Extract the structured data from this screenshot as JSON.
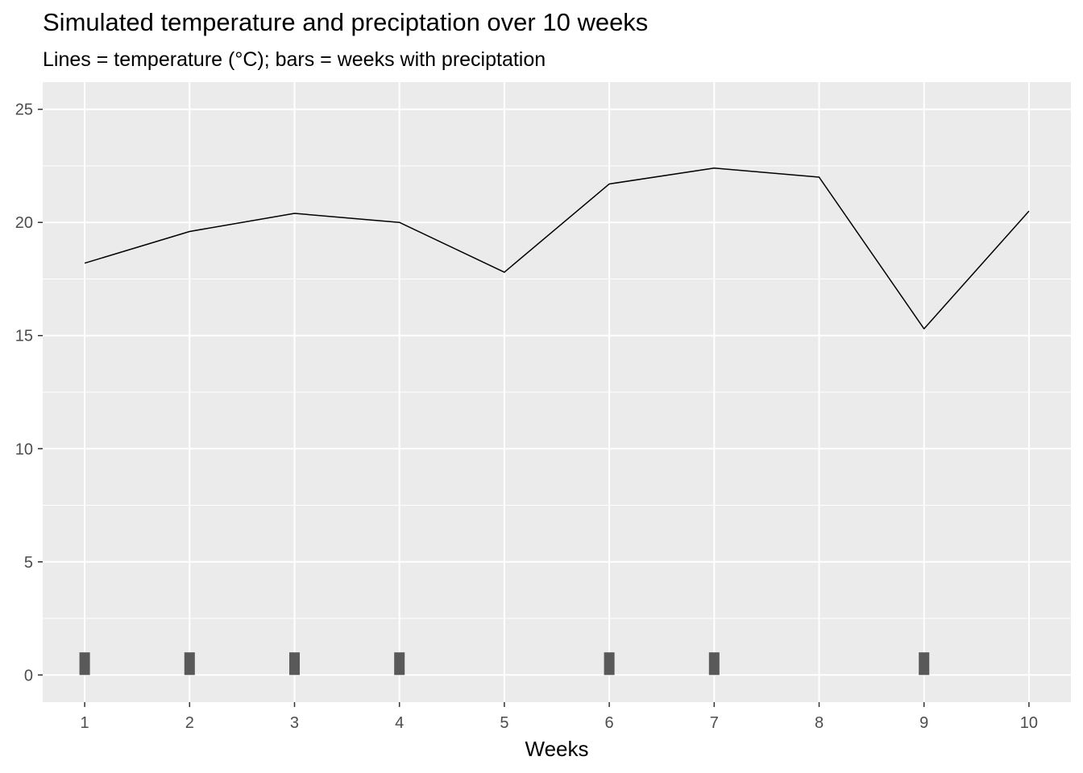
{
  "chart_data": {
    "type": "line+bar",
    "title": "Simulated temperature and preciptation over 10 weeks",
    "subtitle": "Lines = temperature (°C); bars = weeks with preciptation",
    "xlabel": "Weeks",
    "ylabel": "",
    "x_ticks": [
      "1",
      "2",
      "3",
      "4",
      "5",
      "6",
      "7",
      "8",
      "9",
      "10"
    ],
    "y_ticks": [
      0,
      5,
      10,
      15,
      20,
      25
    ],
    "xlim": [
      0.6,
      10.4
    ],
    "ylim": [
      -1.2,
      26.2
    ],
    "grid": true,
    "legend": "none",
    "series": [
      {
        "kind": "line",
        "x": [
          1,
          2,
          3,
          4,
          5,
          6,
          7,
          8,
          9,
          10
        ],
        "values": [
          18.2,
          19.6,
          20.4,
          20.0,
          17.8,
          21.7,
          22.4,
          22.0,
          15.3,
          20.5
        ]
      },
      {
        "kind": "bar",
        "x": [
          1,
          2,
          3,
          4,
          6,
          7,
          9
        ],
        "values": [
          1,
          1,
          1,
          1,
          1,
          1,
          1
        ]
      }
    ],
    "colors": {
      "panel": "#ebebeb",
      "grid": "#ffffff",
      "line": "#000000",
      "bar": "#595959"
    }
  }
}
